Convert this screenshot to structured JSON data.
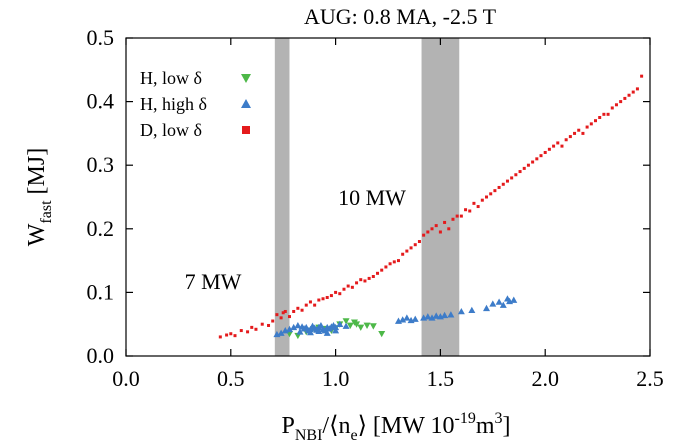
{
  "chart_data": {
    "type": "scatter",
    "title": "AUG: 0.8 MA, -2.5 T",
    "xlabel": {
      "main": "P",
      "sub": "NBI",
      "rest": "/⟨n",
      "sub2": "e",
      "rest2": "⟩ [MW 10",
      "sup": "-19",
      "rest3": "m",
      "sup2": "3",
      "rest4": "]"
    },
    "ylabel": {
      "main": "W",
      "sub": "fast",
      "rest": " [MJ]"
    },
    "xlim": [
      0.0,
      2.5
    ],
    "ylim": [
      0.0,
      0.5
    ],
    "xticks": [
      "0.0",
      "0.5",
      "1.0",
      "1.5",
      "2.0",
      "2.5"
    ],
    "yticks": [
      "0.0",
      "0.1",
      "0.2",
      "0.3",
      "0.4",
      "0.5"
    ],
    "grid": false,
    "legend_position": "top-left",
    "shaded_bands": [
      {
        "x_from": 0.71,
        "x_to": 0.78,
        "label": "7 MW"
      },
      {
        "x_from": 1.41,
        "x_to": 1.59,
        "label": "10 MW"
      }
    ],
    "series": [
      {
        "name": "H,  low δ",
        "marker": "triangle-down",
        "color": "#4db848",
        "x": [
          0.78,
          0.82,
          0.86,
          0.88,
          0.9,
          0.92,
          0.95,
          0.98,
          1.0,
          1.02,
          1.05,
          1.07,
          1.09,
          1.1,
          1.12,
          1.15,
          1.18,
          1.22
        ],
        "y": [
          0.035,
          0.032,
          0.038,
          0.04,
          0.042,
          0.045,
          0.043,
          0.04,
          0.044,
          0.05,
          0.055,
          0.048,
          0.053,
          0.05,
          0.045,
          0.048,
          0.047,
          0.035
        ]
      },
      {
        "name": "H, high δ",
        "marker": "triangle-up",
        "color": "#3d7cc9",
        "x": [
          0.72,
          0.74,
          0.76,
          0.78,
          0.8,
          0.82,
          0.84,
          0.85,
          0.86,
          0.87,
          0.88,
          0.89,
          0.9,
          0.91,
          0.92,
          0.93,
          0.94,
          0.95,
          0.96,
          0.97,
          0.98,
          0.99,
          1.0,
          1.02,
          1.05,
          0.83,
          0.88,
          0.92,
          0.96,
          1.0,
          1.42,
          1.44,
          1.46,
          1.48,
          1.5,
          1.52,
          1.38,
          1.36,
          1.34,
          1.32,
          1.3,
          1.55,
          1.6,
          1.72,
          1.75,
          1.78,
          1.8,
          1.82,
          1.85,
          1.83,
          1.65
        ],
        "y": [
          0.034,
          0.036,
          0.04,
          0.042,
          0.045,
          0.048,
          0.046,
          0.043,
          0.045,
          0.04,
          0.042,
          0.047,
          0.044,
          0.041,
          0.045,
          0.048,
          0.042,
          0.04,
          0.045,
          0.043,
          0.046,
          0.048,
          0.045,
          0.05,
          0.047,
          0.038,
          0.037,
          0.039,
          0.036,
          0.04,
          0.06,
          0.062,
          0.06,
          0.063,
          0.062,
          0.064,
          0.058,
          0.056,
          0.06,
          0.057,
          0.055,
          0.065,
          0.07,
          0.075,
          0.082,
          0.085,
          0.08,
          0.09,
          0.088,
          0.086,
          0.072
        ]
      },
      {
        "name": "D,  low δ",
        "marker": "square",
        "color": "#e41a1c",
        "x": [
          0.45,
          0.48,
          0.5,
          0.52,
          0.55,
          0.58,
          0.6,
          0.62,
          0.65,
          0.68,
          0.7,
          0.72,
          0.74,
          0.75,
          0.76,
          0.78,
          0.8,
          0.82,
          0.84,
          0.86,
          0.88,
          0.9,
          0.92,
          0.94,
          0.96,
          0.98,
          1.0,
          1.02,
          1.04,
          1.06,
          1.08,
          1.1,
          1.12,
          1.14,
          1.16,
          1.18,
          1.2,
          1.22,
          1.24,
          1.26,
          1.28,
          1.3,
          1.32,
          1.34,
          1.36,
          1.38,
          1.4,
          1.42,
          1.44,
          1.46,
          1.48,
          1.5,
          1.52,
          1.54,
          1.56,
          1.58,
          1.6,
          1.62,
          1.64,
          1.66,
          1.68,
          1.7,
          1.72,
          1.74,
          1.76,
          1.78,
          1.8,
          1.82,
          1.84,
          1.86,
          1.88,
          1.9,
          1.92,
          1.94,
          1.96,
          1.98,
          2.0,
          2.02,
          2.04,
          2.06,
          2.08,
          2.1,
          2.12,
          2.14,
          2.16,
          2.18,
          2.2,
          2.22,
          2.24,
          2.26,
          2.28,
          2.3,
          2.32,
          2.34,
          2.36,
          2.38,
          2.4,
          2.42,
          2.44,
          2.46
        ],
        "y": [
          0.03,
          0.033,
          0.035,
          0.032,
          0.04,
          0.038,
          0.045,
          0.042,
          0.05,
          0.048,
          0.055,
          0.065,
          0.06,
          0.068,
          0.07,
          0.062,
          0.07,
          0.075,
          0.072,
          0.08,
          0.085,
          0.08,
          0.088,
          0.09,
          0.092,
          0.095,
          0.1,
          0.098,
          0.105,
          0.11,
          0.108,
          0.115,
          0.12,
          0.118,
          0.122,
          0.125,
          0.13,
          0.135,
          0.14,
          0.145,
          0.148,
          0.15,
          0.16,
          0.165,
          0.17,
          0.175,
          0.18,
          0.19,
          0.195,
          0.2,
          0.205,
          0.195,
          0.21,
          0.2,
          0.215,
          0.22,
          0.22,
          0.23,
          0.228,
          0.24,
          0.235,
          0.245,
          0.25,
          0.255,
          0.26,
          0.265,
          0.27,
          0.275,
          0.28,
          0.285,
          0.29,
          0.295,
          0.3,
          0.305,
          0.31,
          0.315,
          0.32,
          0.325,
          0.33,
          0.335,
          0.33,
          0.34,
          0.345,
          0.35,
          0.355,
          0.35,
          0.36,
          0.365,
          0.37,
          0.375,
          0.38,
          0.38,
          0.39,
          0.395,
          0.4,
          0.405,
          0.41,
          0.415,
          0.42,
          0.44
        ]
      }
    ]
  }
}
